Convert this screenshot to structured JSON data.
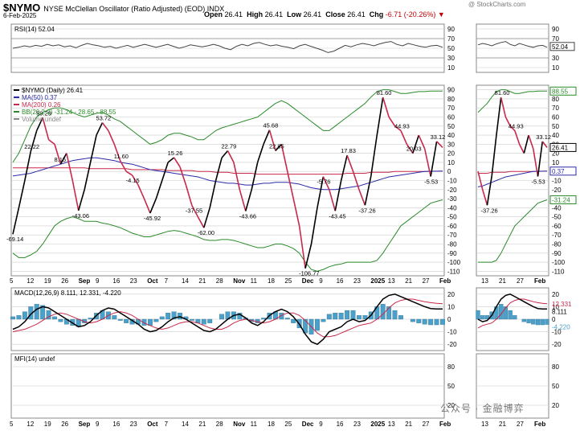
{
  "header": {
    "symbol": "$NYMO",
    "description": "NYSE McClellan Oscillator (Ratio Adjusted) (EOD) INDX",
    "date": "6-Feb-2025",
    "open_label": "Open",
    "open": "26.41",
    "high_label": "High",
    "high": "26.41",
    "low_label": "Low",
    "low": "26.41",
    "close_label": "Close",
    "close": "26.41",
    "chg_label": "Chg",
    "chg": "-6.71 (-20.26%)",
    "credit": "@ StockCharts.com",
    "watermark": "公众号 · 金融博弈"
  },
  "chart_data": [
    {
      "type": "line",
      "panel": "rsi",
      "legend": "RSI(14) 52.04",
      "y_ticks": [
        "90",
        "70",
        "50",
        "30",
        "10"
      ],
      "ylim": [
        0,
        100
      ],
      "reference_lines": [
        70,
        30
      ],
      "last_value": "52.04",
      "series": [
        {
          "values": [
            50,
            52,
            55,
            53,
            56,
            54,
            58,
            55,
            57,
            53,
            55,
            51,
            56,
            60,
            57,
            55,
            52,
            54,
            50,
            53,
            56,
            52,
            55,
            58,
            55,
            52,
            55,
            58,
            54,
            50,
            53,
            57,
            55,
            53,
            55,
            58,
            55,
            50,
            47,
            54,
            58,
            55,
            60,
            62,
            58,
            55,
            57,
            54,
            52,
            49,
            55,
            58,
            54,
            50,
            46,
            41,
            44,
            50,
            56,
            53,
            57,
            60,
            58,
            55,
            59,
            62,
            64,
            58,
            55,
            60,
            57,
            54,
            52,
            55,
            56,
            52
          ]
        }
      ]
    },
    {
      "type": "line",
      "panel": "main",
      "legend": [
        {
          "label": "$NYMO (Daily) 26.41",
          "color": "#000000"
        },
        {
          "label": "MA(50) 0.37",
          "color": "#2a2aa8"
        },
        {
          "label": "MA(200) 0.26",
          "color": "#c8284a"
        },
        {
          "label": "BB(20,2.0) -31.24 - 28.65 - 88.55",
          "color": "#2a8a2a"
        },
        {
          "label": "Volume undef",
          "color": "#888888"
        }
      ],
      "y_ticks": [
        "90",
        "80",
        "70",
        "60",
        "50",
        "40",
        "30",
        "20",
        "10",
        "0",
        "-10",
        "-20",
        "-30",
        "-40",
        "-50",
        "-60",
        "-70",
        "-80",
        "-90",
        "-100",
        "-110"
      ],
      "ylim": [
        -115,
        95
      ],
      "annotations": [
        "-69.14",
        "22.22",
        "59.29",
        "8.15",
        "-43.06",
        "53.72",
        "11.60",
        "-4.15",
        "-45.92",
        "15.26",
        "-37.55",
        "-62.00",
        "22.79",
        "-43.66",
        "45.68",
        "22.85",
        "-106.77",
        "-5.76",
        "-43.45",
        "17.83",
        "-37.26",
        "81.60",
        "44.93",
        "20.03",
        "33.12",
        "-5.53"
      ],
      "series": [
        {
          "name": "$NYMO",
          "values": [
            -69.14,
            -40,
            -10,
            22.22,
            45,
            59.29,
            35,
            30,
            8.15,
            20,
            -10,
            -43.06,
            -20,
            10,
            40,
            53.72,
            45,
            30,
            11.6,
            0,
            -4.15,
            -15,
            -30,
            -45.92,
            -30,
            -10,
            10,
            15.26,
            5,
            -15,
            -37.55,
            -50,
            -62,
            -40,
            -10,
            15,
            22.79,
            10,
            -20,
            -43.66,
            -20,
            10,
            30,
            45.68,
            22.85,
            30,
            0,
            -30,
            -60,
            -106.77,
            -80,
            -40,
            -5.76,
            -20,
            -43.45,
            -10,
            17.83,
            0,
            -20,
            -37.26,
            -5,
            40,
            81.6,
            60,
            50,
            44.93,
            30,
            20.03,
            40,
            25,
            -5.53,
            33.12,
            26.41
          ]
        },
        {
          "name": "MA(50)",
          "values": [
            -5,
            -4,
            -3,
            -2,
            0,
            2,
            4,
            6,
            8,
            10,
            12,
            13,
            14,
            15,
            15,
            14,
            13,
            12,
            10,
            9,
            8,
            6,
            4,
            2,
            1,
            0,
            -1,
            -2,
            -3,
            -4,
            -5,
            -6,
            -8,
            -10,
            -11,
            -12,
            -13,
            -13,
            -14,
            -15,
            -15,
            -14,
            -13,
            -13,
            -12,
            -12,
            -12,
            -13,
            -14,
            -16,
            -18,
            -19,
            -20,
            -20,
            -20,
            -19,
            -18,
            -17,
            -16,
            -14,
            -12,
            -10,
            -8,
            -6,
            -5,
            -4,
            -3,
            -2,
            -1,
            0,
            0.2,
            0.3,
            0.37
          ]
        },
        {
          "name": "MA(200)",
          "values": [
            4,
            4,
            4,
            4,
            4,
            4,
            4,
            4,
            4,
            4,
            4,
            4,
            4,
            3,
            3,
            3,
            3,
            3,
            3,
            3,
            2,
            2,
            2,
            2,
            2,
            2,
            1,
            1,
            1,
            1,
            1,
            0,
            0,
            0,
            -1,
            -1,
            -1,
            -2,
            -2,
            -2,
            -2,
            -3,
            -3,
            -3,
            -3,
            -3,
            -3,
            -3,
            -3,
            -3,
            -3,
            -3,
            -3,
            -3,
            -3,
            -3,
            -2,
            -2,
            -2,
            -2,
            -1,
            -1,
            -1,
            -1,
            0,
            0,
            0,
            0,
            0,
            0,
            0.1,
            0.2,
            0.26
          ]
        },
        {
          "name": "BB upper",
          "values": [
            10,
            20,
            35,
            50,
            60,
            65,
            68,
            70,
            70,
            68,
            65,
            62,
            60,
            62,
            64,
            65,
            62,
            58,
            55,
            50,
            45,
            40,
            35,
            30,
            32,
            35,
            40,
            42,
            42,
            40,
            38,
            35,
            35,
            40,
            45,
            48,
            50,
            52,
            54,
            56,
            58,
            60,
            65,
            70,
            75,
            78,
            75,
            70,
            65,
            60,
            55,
            50,
            45,
            45,
            50,
            55,
            60,
            65,
            70,
            75,
            82,
            88,
            90,
            90,
            88,
            86,
            86,
            87,
            88,
            88,
            88.55,
            88.55,
            88.55
          ]
        },
        {
          "name": "BB lower",
          "values": [
            -90,
            -95,
            -95,
            -92,
            -88,
            -80,
            -70,
            -60,
            -55,
            -52,
            -50,
            -52,
            -55,
            -55,
            -55,
            -57,
            -58,
            -60,
            -62,
            -65,
            -68,
            -70,
            -72,
            -72,
            -70,
            -68,
            -66,
            -65,
            -66,
            -68,
            -70,
            -72,
            -75,
            -76,
            -76,
            -75,
            -75,
            -76,
            -78,
            -80,
            -82,
            -84,
            -84,
            -82,
            -80,
            -80,
            -82,
            -85,
            -90,
            -100,
            -108,
            -110,
            -108,
            -105,
            -103,
            -102,
            -100,
            -100,
            -100,
            -100,
            -100,
            -98,
            -90,
            -80,
            -70,
            -60,
            -55,
            -50,
            -45,
            -40,
            -35,
            -33,
            -31.24
          ]
        }
      ]
    },
    {
      "type": "bar",
      "panel": "macd",
      "legend": "MACD(12,26,9) 8.111, 12.331, -4.220",
      "y_ticks": [
        "20",
        "10",
        "0",
        "-10",
        "-20"
      ],
      "ylim": [
        -25,
        25
      ],
      "series": [
        {
          "name": "MACD",
          "values": [
            -8,
            -6,
            -2,
            4,
            8,
            10,
            9,
            6,
            3,
            0,
            -3,
            -6,
            -5,
            -2,
            3,
            7,
            9,
            8,
            5,
            2,
            -1,
            -4,
            -8,
            -10,
            -9,
            -6,
            -2,
            1,
            2,
            0,
            -3,
            -6,
            -9,
            -10,
            -8,
            -4,
            0,
            3,
            4,
            1,
            -3,
            -5,
            -2,
            3,
            6,
            8,
            6,
            2,
            -4,
            -12,
            -18,
            -20,
            -16,
            -10,
            -8,
            -6,
            -2,
            0,
            -2,
            -1,
            3,
            10,
            16,
            19,
            20,
            18,
            16,
            14,
            12,
            10,
            8.5,
            8.2,
            8.111
          ]
        },
        {
          "name": "Signal",
          "values": [
            -10,
            -9,
            -8,
            -6,
            -4,
            -1,
            2,
            4,
            5,
            4,
            2,
            0,
            -2,
            -3,
            -2,
            0,
            3,
            5,
            6,
            5,
            3,
            0,
            -3,
            -5,
            -7,
            -8,
            -7,
            -5,
            -3,
            -2,
            -2,
            -3,
            -5,
            -7,
            -8,
            -8,
            -6,
            -3,
            -1,
            0,
            -1,
            -2,
            -3,
            -2,
            0,
            3,
            5,
            5,
            3,
            -1,
            -6,
            -11,
            -14,
            -14,
            -13,
            -11,
            -9,
            -7,
            -5,
            -4,
            -3,
            0,
            4,
            9,
            13,
            15,
            16,
            16,
            15,
            14,
            13.2,
            12.7,
            12.331
          ]
        },
        {
          "name": "Histogram",
          "values": [
            2,
            3,
            6,
            10,
            12,
            11,
            7,
            2,
            -2,
            -4,
            -5,
            -6,
            -3,
            1,
            5,
            7,
            6,
            3,
            -1,
            -3,
            -4,
            -4,
            -5,
            -5,
            -2,
            2,
            5,
            6,
            5,
            2,
            -1,
            -3,
            -4,
            -3,
            0,
            4,
            6,
            6,
            5,
            1,
            -2,
            -3,
            1,
            5,
            6,
            5,
            1,
            -3,
            -7,
            -11,
            -12,
            -9,
            -2,
            4,
            5,
            5,
            7,
            7,
            3,
            3,
            6,
            10,
            12,
            10,
            7,
            3,
            0,
            -2,
            -3,
            -4,
            -4.5,
            -4.5,
            -4.22
          ]
        }
      ]
    },
    {
      "type": "line",
      "panel": "mfi",
      "legend": "MFI(14) undef",
      "y_ticks": [
        "80",
        "50",
        "20"
      ],
      "ylim": [
        0,
        100
      ]
    }
  ],
  "x_axis_main": [
    "5",
    "12",
    "19",
    "26",
    "Sep",
    "9",
    "16",
    "23",
    "Oct",
    "7",
    "14",
    "21",
    "28",
    "Nov",
    "11",
    "18",
    "25",
    "Dec",
    "9",
    "16",
    "23",
    "2025",
    "13",
    "21",
    "27",
    "Feb"
  ],
  "x_axis_zoom": [
    "13",
    "21",
    "27",
    "Feb"
  ],
  "zoom_labels": [
    "-37.26",
    "81.60",
    "44.93",
    "33.12",
    "-5.53"
  ],
  "right_values": {
    "rsi": "52.04",
    "bb_upper": "88.55",
    "price": "26.41",
    "ma": "0.37",
    "bb_lower": "-31.24",
    "macd": "12.331",
    "macd2": "8.111",
    "hist": "-4.220"
  },
  "colors": {
    "price": "#000000",
    "ma50": "#2a2aa8",
    "ma200": "#c8284a",
    "bb": "#2a8a2a",
    "hist": "#4aa0c8",
    "signal": "#c8284a",
    "grid": "#cccccc",
    "down": "#c8284a"
  }
}
